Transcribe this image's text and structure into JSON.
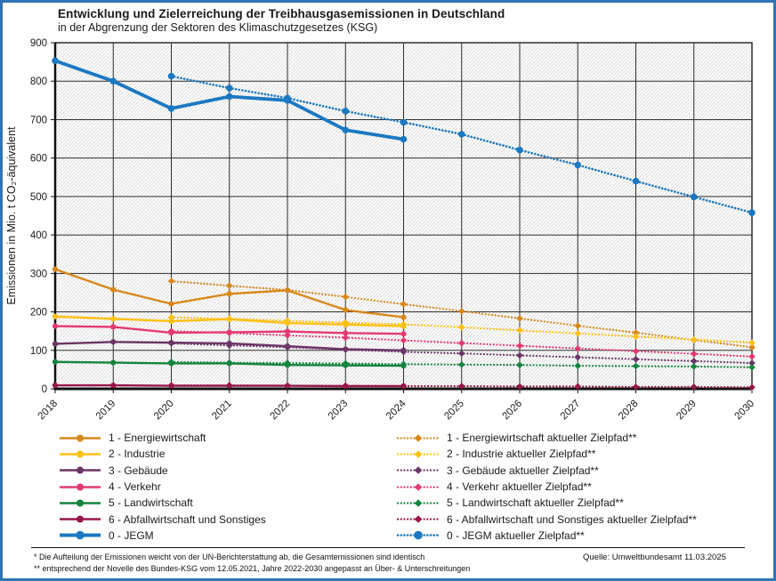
{
  "title": "Entwicklung und Zielerreichung der Treibhausgasemissionen in Deutschland",
  "subtitle": "in der Abgrenzung der Sektoren des Klimaschutzgesetzes (KSG)",
  "footnotes": {
    "line1": "* Die Aufteilung der Emissionen weicht von der UN-Berichterstattung ab, die Gesamtemissionen sind identisch",
    "line2": "** entsprechend der Novelle des Bundes-KSG vom 12.05.2021, Jahre 2022-2030 angepasst an Über- & Unterschreitungen",
    "source": "Quelle:  Umweltbundesamt   11.03.2025"
  },
  "colors": {
    "frame": "#2E75B6",
    "grid": "#2e2e2e",
    "hatch": "#dcdcdc",
    "axis": "#111111",
    "text": "#1a1a1a"
  },
  "chart_data": {
    "type": "line",
    "title": "Entwicklung und Zielerreichung der Treibhausgasemissionen in Deutschland",
    "subtitle": "in der Abgrenzung der Sektoren des Klimaschutzgesetzes (KSG)",
    "xlabel": "",
    "ylabel": "Emissionen in Mio. t CO₂-äquivalent",
    "ylim": [
      0,
      900
    ],
    "ytick_step": 100,
    "grid": true,
    "legend_position": "bottom",
    "x": [
      2018,
      2019,
      2020,
      2021,
      2022,
      2023,
      2024,
      2025,
      2026,
      2027,
      2028,
      2029,
      2030
    ],
    "series": [
      {
        "id": "energie_ziel",
        "name": "1 - Energiewirtschaft aktueller Zielpfad**",
        "color": "#D8871B",
        "style": "dotted",
        "marker": "diamond",
        "values": [
          null,
          null,
          280,
          268,
          257,
          239,
          220,
          202,
          183,
          164,
          146,
          127,
          108
        ]
      },
      {
        "id": "industrie_ziel",
        "name": "2 - Industrie aktueller Zielpfad**",
        "color": "#FFC013",
        "style": "dotted",
        "marker": "diamond",
        "values": [
          null,
          null,
          186,
          182,
          177,
          172,
          168,
          160,
          152,
          144,
          136,
          128,
          120
        ]
      },
      {
        "id": "gebaeude_ziel",
        "name": "3 - Gebäude aktueller Zielpfad**",
        "color": "#6B3567",
        "style": "dotted",
        "marker": "diamond",
        "values": [
          null,
          null,
          118,
          113,
          108,
          102,
          96,
          92,
          87,
          82,
          77,
          72,
          67
        ]
      },
      {
        "id": "verkehr_ziel",
        "name": "4 - Verkehr aktueller Zielpfad**",
        "color": "#E43A72",
        "style": "dotted",
        "marker": "diamond",
        "values": [
          null,
          null,
          150,
          145,
          139,
          133,
          126,
          119,
          112,
          105,
          98,
          91,
          84
        ]
      },
      {
        "id": "landwirtschaft_ziel",
        "name": "5 - Landwirtschaft aktueller Zielpfad**",
        "color": "#15843F",
        "style": "dotted",
        "marker": "diamond",
        "values": [
          null,
          null,
          70,
          68,
          67,
          66,
          64,
          63,
          62,
          60,
          59,
          58,
          56
        ]
      },
      {
        "id": "abfall_ziel",
        "name": "6 - Abfallwirtschaft und Sonstiges aktueller Zielpfad**",
        "color": "#98174A",
        "style": "dotted",
        "marker": "diamond",
        "values": [
          null,
          null,
          9,
          9,
          8,
          8,
          7,
          7,
          6,
          6,
          5,
          5,
          4
        ]
      },
      {
        "id": "jegm_ziel",
        "name": "0 - JEGM aktueller Zielpfad**",
        "color": "#1B78C2",
        "style": "dotted",
        "marker": "circle",
        "values": [
          null,
          null,
          813,
          782,
          756,
          722,
          693,
          662,
          621,
          582,
          540,
          499,
          458
        ]
      },
      {
        "id": "energie",
        "name": "1 - Energiewirtschaft",
        "color": "#D8871B",
        "style": "solid",
        "marker": "circle",
        "values": [
          311,
          258,
          221,
          247,
          256,
          205,
          186,
          null,
          null,
          null,
          null,
          null,
          null
        ]
      },
      {
        "id": "industrie",
        "name": "2 - Industrie",
        "color": "#FFC013",
        "style": "solid",
        "marker": "circle",
        "values": [
          188,
          182,
          176,
          181,
          171,
          167,
          163,
          null,
          null,
          null,
          null,
          null,
          null
        ]
      },
      {
        "id": "gebaeude",
        "name": "3 - Gebäude",
        "color": "#6B3567",
        "style": "solid",
        "marker": "circle",
        "values": [
          117,
          122,
          120,
          118,
          111,
          103,
          100,
          null,
          null,
          null,
          null,
          null,
          null
        ]
      },
      {
        "id": "verkehr",
        "name": "4 - Verkehr",
        "color": "#E43A72",
        "style": "solid",
        "marker": "circle",
        "values": [
          163,
          161,
          146,
          147,
          149,
          145,
          143,
          null,
          null,
          null,
          null,
          null,
          null
        ]
      },
      {
        "id": "landwirtschaft",
        "name": "5 - Landwirtschaft",
        "color": "#15843F",
        "style": "solid",
        "marker": "circle",
        "values": [
          70,
          68,
          66,
          66,
          62,
          61,
          60,
          null,
          null,
          null,
          null,
          null,
          null
        ]
      },
      {
        "id": "abfall",
        "name": "6 - Abfallwirtschaft und Sonstiges",
        "color": "#98174A",
        "style": "solid",
        "marker": "circle",
        "values": [
          9,
          9,
          8,
          8,
          8,
          7,
          7,
          null,
          null,
          null,
          null,
          null,
          null
        ]
      },
      {
        "id": "jegm",
        "name": "0 - JEGM",
        "color": "#1B78C2",
        "style": "solid",
        "marker": "circle",
        "values": [
          853,
          800,
          729,
          760,
          750,
          673,
          649,
          null,
          null,
          null,
          null,
          null,
          null
        ]
      }
    ]
  },
  "legend": {
    "left": [
      "energie",
      "industrie",
      "gebaeude",
      "verkehr",
      "landwirtschaft",
      "abfall",
      "jegm"
    ],
    "right": [
      "energie_ziel",
      "industrie_ziel",
      "gebaeude_ziel",
      "verkehr_ziel",
      "landwirtschaft_ziel",
      "abfall_ziel",
      "jegm_ziel"
    ]
  }
}
